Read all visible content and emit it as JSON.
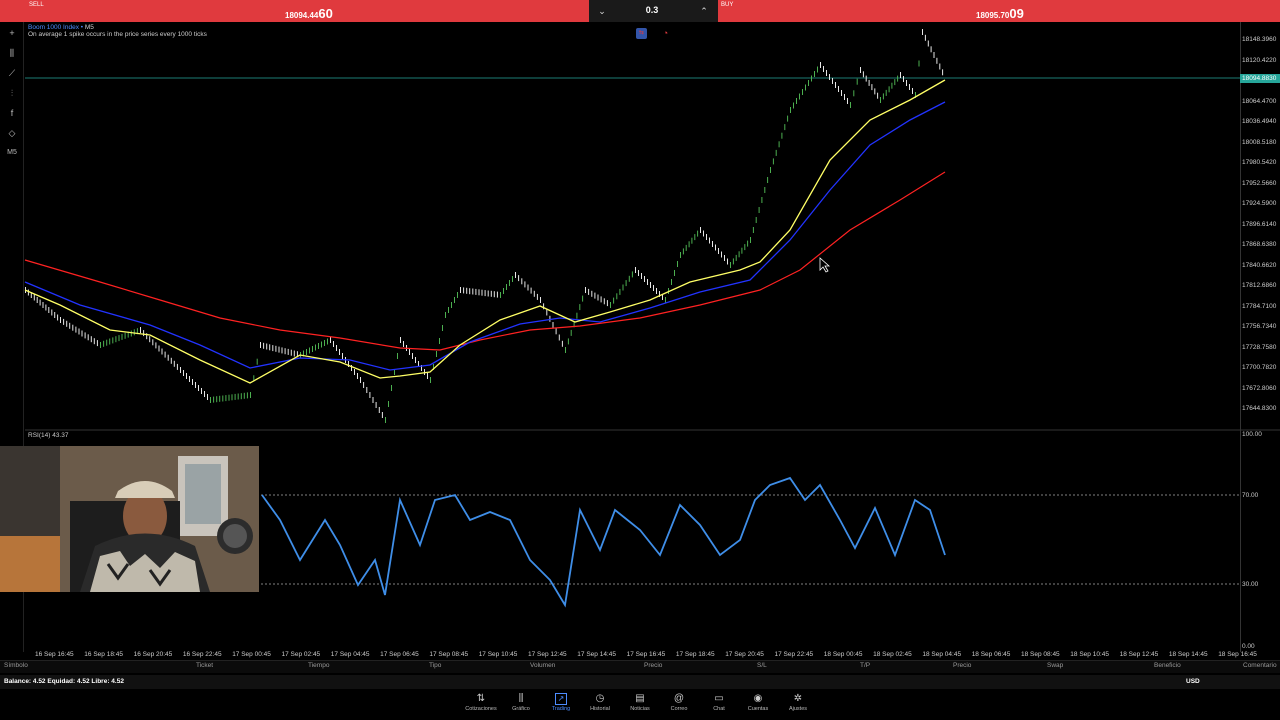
{
  "topbar": {
    "sell_label": "SELL",
    "sell_price_small": "18094.44",
    "sell_price_big": "60",
    "lot_value": "0.3",
    "buy_label": "BUY",
    "buy_price_small": "18095.70",
    "buy_price_big": "09"
  },
  "chart": {
    "symbol": "Boom 1000 Index",
    "timeframe": "M5",
    "description": "On average 1 spike occurs in the price series every 1000 ticks",
    "current_price": "18094.8830",
    "price_ticks": [
      "18148.3960",
      "18120.4220",
      "18092.4500",
      "18064.4700",
      "18036.4940",
      "18008.5180",
      "17980.5420",
      "17952.5660",
      "17924.5900",
      "17896.6140",
      "17868.6380",
      "17840.6620",
      "17812.6860",
      "17784.7100",
      "17756.7340",
      "17728.7580",
      "17700.7820",
      "17672.8060",
      "17644.8300"
    ],
    "rsi_label": "RSI(14) 43.37",
    "rsi_ticks": [
      "100.00",
      "70.00",
      "30.00",
      "0.00"
    ],
    "time_ticks": [
      "16 Sep 16:45",
      "16 Sep 18:45",
      "16 Sep 20:45",
      "16 Sep 22:45",
      "17 Sep 00:45",
      "17 Sep 02:45",
      "17 Sep 04:45",
      "17 Sep 06:45",
      "17 Sep 08:45",
      "17 Sep 10:45",
      "17 Sep 12:45",
      "17 Sep 14:45",
      "17 Sep 16:45",
      "17 Sep 18:45",
      "17 Sep 20:45",
      "17 Sep 22:45",
      "18 Sep 00:45",
      "18 Sep 02:45",
      "18 Sep 04:45",
      "18 Sep 06:45",
      "18 Sep 08:45",
      "18 Sep 10:45",
      "18 Sep 12:45",
      "18 Sep 14:45",
      "18 Sep 16:45"
    ],
    "colors": {
      "sell": "#e03a3e",
      "buy": "#e03a3e",
      "price_line": "#26a69a",
      "ma_fast": "#ffff66",
      "ma_mid": "#2233ff",
      "ma_slow": "#ff2222",
      "rsi": "#3f8ee8"
    }
  },
  "table_headers": [
    "Símbolo",
    "Ticket",
    "Tiempo",
    "Tipo",
    "Volumen",
    "Precio",
    "S/L",
    "T/P",
    "Precio",
    "Swap",
    "Beneficio",
    "Comentario"
  ],
  "account": {
    "balance_text": "Balance: 4.52  Equidad: 4.52  Libre: 4.52",
    "currency": "USD"
  },
  "nav": [
    {
      "label": "Cotizaciones",
      "icon": "arrows-updown-icon",
      "glyph": "⇅"
    },
    {
      "label": "Gráfico",
      "icon": "candles-icon",
      "glyph": "⫼"
    },
    {
      "label": "Trading",
      "icon": "trading-chart-icon",
      "glyph": "↗"
    },
    {
      "label": "Historial",
      "icon": "history-clock-icon",
      "glyph": "◷"
    },
    {
      "label": "Noticias",
      "icon": "news-icon",
      "glyph": "▤"
    },
    {
      "label": "Correo",
      "icon": "mail-at-icon",
      "glyph": "@"
    },
    {
      "label": "Chat",
      "icon": "chat-bubble-icon",
      "glyph": "▭"
    },
    {
      "label": "Cuentas",
      "icon": "account-user-icon",
      "glyph": "◉"
    },
    {
      "label": "Ajustes",
      "icon": "gear-icon",
      "glyph": "✲"
    }
  ],
  "left_tools": [
    {
      "icon": "crosshair-icon",
      "glyph": "+"
    },
    {
      "icon": "candles-icon",
      "glyph": "⫼"
    },
    {
      "icon": "trendline-icon",
      "glyph": "⟋"
    },
    {
      "icon": "indicators-icon",
      "glyph": "⫶"
    },
    {
      "icon": "function-icon",
      "glyph": "f"
    },
    {
      "icon": "shapes-icon",
      "glyph": "◇"
    },
    {
      "icon": "timeframe-icon",
      "glyph": "M5"
    }
  ]
}
